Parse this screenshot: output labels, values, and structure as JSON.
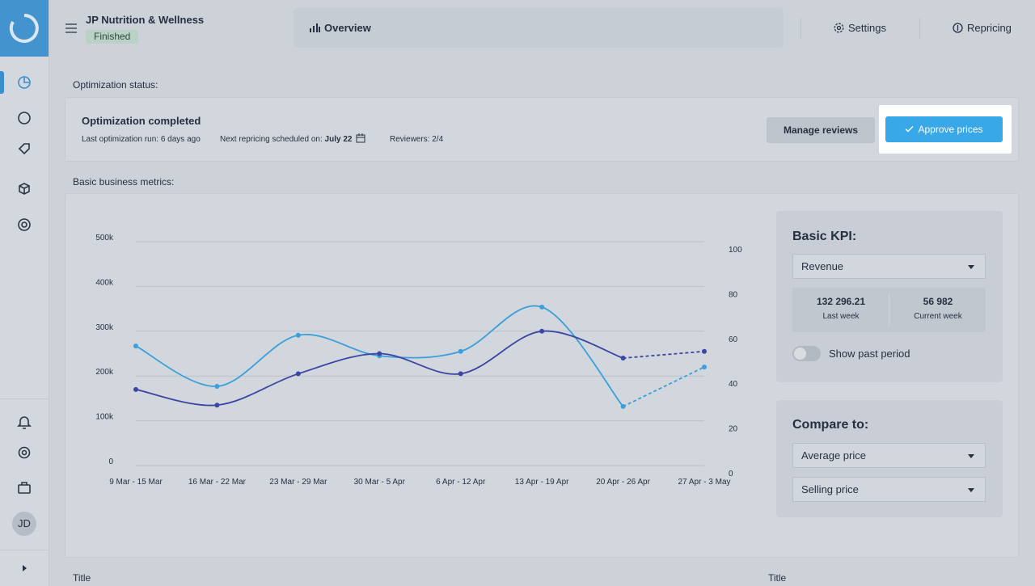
{
  "sidebar": {
    "avatar": "JD"
  },
  "header": {
    "title": "JP Nutrition & Wellness",
    "status": "Finished",
    "tabs": [
      "Overview",
      "Settings",
      "Repricing"
    ]
  },
  "optimization": {
    "heading": "Optimization status:",
    "title": "Optimization completed",
    "last_run": "Last optimization run: 6 days ago",
    "next_label": "Next repricing scheduled on:",
    "next_date": "July 22",
    "reviewers": "Reviewers: 2/4",
    "buttons": [
      "Manage reviews",
      "Approve prices"
    ]
  },
  "metrics": {
    "heading": "Basic business metrics:"
  },
  "chart_data": {
    "type": "line",
    "categories": [
      "9 Mar - 15 Mar",
      "16 Mar - 22 Mar",
      "23 Mar - 29 Mar",
      "30 Mar - 5 Apr",
      "6 Apr - 12 Apr",
      "13 Apr - 19 Apr",
      "20 Apr - 26 Apr",
      "27 Apr - 3 May"
    ],
    "series": [
      {
        "color": "#3a9fda",
        "values": [
          267000,
          177000,
          291000,
          245000,
          255000,
          354000,
          132000,
          220000
        ]
      },
      {
        "color": "#3b45a3",
        "axis": "y2",
        "values": [
          34,
          27,
          41,
          50,
          41,
          60,
          48,
          51
        ]
      }
    ],
    "dashed_from": 6,
    "ylim": [
      0,
      500000
    ],
    "yticks": [
      0,
      {
        "value": 100000,
        "label": "100k"
      },
      {
        "value": 200000,
        "label": "200k"
      },
      {
        "value": 300000,
        "label": "300k"
      },
      {
        "value": 400000,
        "label": "400k"
      },
      {
        "value": 500000,
        "label": "500k"
      }
    ],
    "y2lim": [
      0,
      100
    ],
    "y2ticks": [
      0,
      20,
      40,
      60,
      80,
      100
    ],
    "grid": true
  },
  "kpi": {
    "title": "Basic KPI:",
    "selected": "Revenue",
    "stats": [
      {
        "value": "132 296.21",
        "label": "Last week"
      },
      {
        "value": "56 982",
        "label": "Current week"
      }
    ],
    "toggle_label": "Show past period"
  },
  "compare": {
    "title": "Compare to:",
    "options": [
      "Average price",
      "Selling price"
    ]
  },
  "footer": {
    "titles": [
      "Title",
      "Title"
    ]
  }
}
